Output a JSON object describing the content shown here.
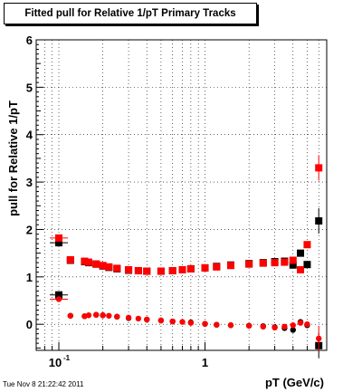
{
  "chart_data": {
    "type": "scatter",
    "title": "Fitted pull for Relative 1/pT  Primary Tracks",
    "xlabel": "pT (GeV/c)",
    "ylabel": "pull for Relative 1/pT",
    "xscale": "log",
    "xlim": [
      0.07,
      6.8
    ],
    "ylim": [
      -0.55,
      6.0
    ],
    "grid": true,
    "yticks": [
      0,
      1,
      2,
      3,
      4,
      5,
      6
    ],
    "xticks": [
      {
        "value": 0.1,
        "base": "10",
        "exp": "-1"
      },
      {
        "value": 1,
        "base": "1",
        "exp": ""
      }
    ],
    "series": [
      {
        "color": "#000000",
        "marker": "square",
        "x": [
          0.1,
          0.1,
          0.12,
          0.15,
          0.16,
          0.18,
          0.2,
          0.22,
          0.25,
          0.3,
          0.35,
          0.4,
          0.5,
          0.6,
          0.7,
          0.8,
          1.0,
          1.2,
          1.5,
          2.0,
          2.5,
          3.0,
          3.5,
          4.0,
          4.5,
          5.0,
          6.0,
          6.0
        ],
        "y": [
          1.72,
          0.62,
          1.35,
          1.32,
          1.3,
          1.27,
          1.23,
          1.2,
          1.17,
          1.14,
          1.13,
          1.12,
          1.12,
          1.13,
          1.15,
          1.17,
          1.19,
          1.22,
          1.25,
          1.28,
          1.3,
          1.32,
          1.33,
          1.25,
          1.5,
          1.26,
          2.18,
          -0.45
        ]
      },
      {
        "color": "#000000",
        "marker": "circle",
        "x": [
          0.12,
          0.15,
          0.18,
          0.2,
          0.25,
          0.3,
          0.4,
          0.5,
          0.6,
          0.8,
          1.0,
          1.2,
          1.5,
          2.0,
          2.5,
          3.0,
          3.5,
          4.0,
          4.5,
          5.0
        ],
        "y": [
          0.18,
          0.17,
          0.2,
          0.19,
          0.16,
          0.13,
          0.1,
          0.08,
          0.06,
          0.04,
          0.01,
          -0.01,
          -0.02,
          -0.03,
          -0.04,
          -0.06,
          -0.08,
          -0.12,
          0.05,
          -0.02
        ]
      },
      {
        "color": "#ff0000",
        "marker": "square",
        "x": [
          0.1,
          0.12,
          0.15,
          0.16,
          0.18,
          0.2,
          0.22,
          0.25,
          0.3,
          0.35,
          0.4,
          0.5,
          0.6,
          0.7,
          0.8,
          1.0,
          1.2,
          1.5,
          2.0,
          2.5,
          3.0,
          3.5,
          4.0,
          4.5,
          5.0,
          6.0
        ],
        "y": [
          1.82,
          1.36,
          1.33,
          1.31,
          1.27,
          1.24,
          1.21,
          1.18,
          1.15,
          1.13,
          1.12,
          1.12,
          1.13,
          1.15,
          1.17,
          1.19,
          1.21,
          1.24,
          1.27,
          1.29,
          1.3,
          1.31,
          1.35,
          1.15,
          1.68,
          3.3
        ]
      },
      {
        "color": "#ff0000",
        "marker": "circle",
        "x": [
          0.1,
          0.12,
          0.15,
          0.16,
          0.18,
          0.2,
          0.22,
          0.25,
          0.3,
          0.35,
          0.4,
          0.5,
          0.6,
          0.7,
          0.8,
          1.0,
          1.2,
          1.5,
          2.0,
          2.5,
          3.0,
          3.5,
          4.0,
          4.5,
          5.0,
          6.0
        ],
        "y": [
          0.53,
          0.18,
          0.17,
          0.19,
          0.2,
          0.19,
          0.18,
          0.16,
          0.14,
          0.12,
          0.1,
          0.08,
          0.06,
          0.05,
          0.03,
          0.01,
          -0.01,
          -0.02,
          -0.03,
          -0.05,
          -0.07,
          -0.05,
          -0.02,
          0.03,
          0.0,
          -0.3
        ]
      }
    ]
  },
  "timestamp": "Tue Nov  8 21:22:42 2011"
}
